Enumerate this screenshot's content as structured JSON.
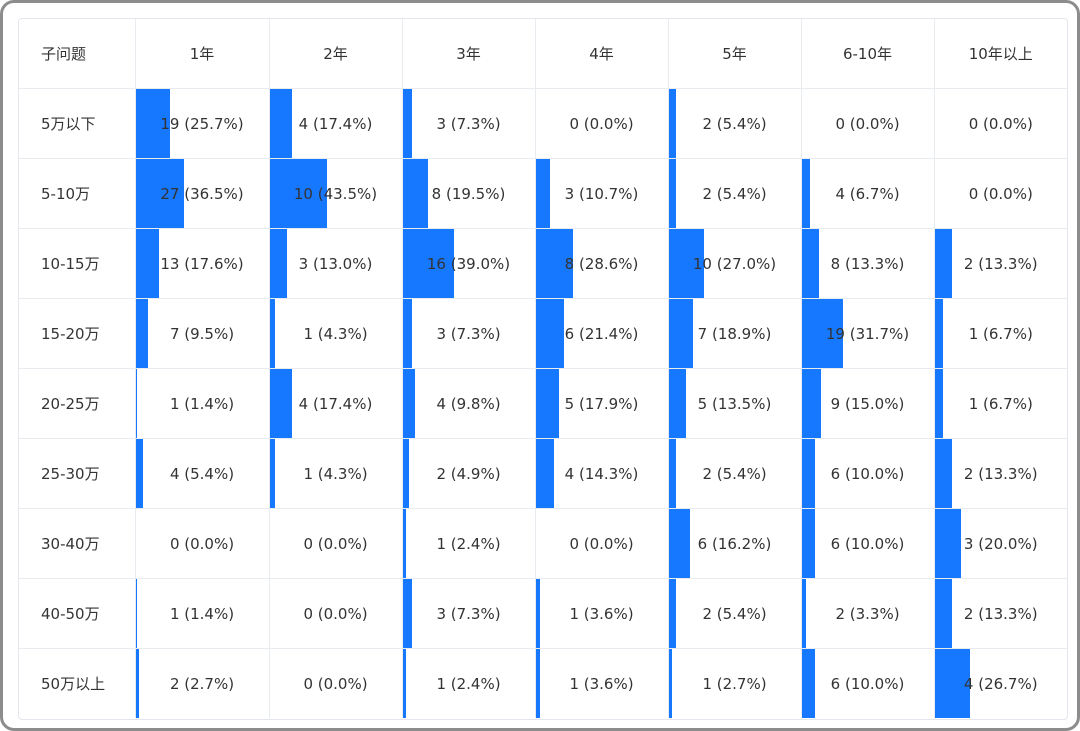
{
  "colors": {
    "bar": "#1677ff",
    "text": "#333333",
    "grid": "#e8ebf0"
  },
  "header": {
    "corner": "子问题",
    "columns": [
      "1年",
      "2年",
      "3年",
      "4年",
      "5年",
      "6-10年",
      "10年以上"
    ]
  },
  "rows": [
    {
      "label": "5万以下",
      "cells": [
        "19 (25.7%)",
        "4 (17.4%)",
        "3 (7.3%)",
        "0 (0.0%)",
        "2 (5.4%)",
        "0 (0.0%)",
        "0 (0.0%)"
      ]
    },
    {
      "label": "5-10万",
      "cells": [
        "27 (36.5%)",
        "10 (43.5%)",
        "8 (19.5%)",
        "3 (10.7%)",
        "2 (5.4%)",
        "4 (6.7%)",
        "0 (0.0%)"
      ]
    },
    {
      "label": "10-15万",
      "cells": [
        "13 (17.6%)",
        "3 (13.0%)",
        "16 (39.0%)",
        "8 (28.6%)",
        "10 (27.0%)",
        "8 (13.3%)",
        "2 (13.3%)"
      ]
    },
    {
      "label": "15-20万",
      "cells": [
        "7 (9.5%)",
        "1 (4.3%)",
        "3 (7.3%)",
        "6 (21.4%)",
        "7 (18.9%)",
        "19 (31.7%)",
        "1 (6.7%)"
      ]
    },
    {
      "label": "20-25万",
      "cells": [
        "1 (1.4%)",
        "4 (17.4%)",
        "4 (9.8%)",
        "5 (17.9%)",
        "5 (13.5%)",
        "9 (15.0%)",
        "1 (6.7%)"
      ]
    },
    {
      "label": "25-30万",
      "cells": [
        "4 (5.4%)",
        "1 (4.3%)",
        "2 (4.9%)",
        "4 (14.3%)",
        "2 (5.4%)",
        "6 (10.0%)",
        "2 (13.3%)"
      ]
    },
    {
      "label": "30-40万",
      "cells": [
        "0 (0.0%)",
        "0 (0.0%)",
        "1 (2.4%)",
        "0 (0.0%)",
        "6 (16.2%)",
        "6 (10.0%)",
        "3 (20.0%)"
      ]
    },
    {
      "label": "40-50万",
      "cells": [
        "1 (1.4%)",
        "0 (0.0%)",
        "3 (7.3%)",
        "1 (3.6%)",
        "2 (5.4%)",
        "2 (3.3%)",
        "2 (13.3%)"
      ]
    },
    {
      "label": "50万以上",
      "cells": [
        "2 (2.7%)",
        "0 (0.0%)",
        "1 (2.4%)",
        "1 (3.6%)",
        "1 (2.7%)",
        "6 (10.0%)",
        "4 (26.7%)"
      ]
    }
  ],
  "chart_data": {
    "type": "table",
    "columns": [
      "1年",
      "2年",
      "3年",
      "4年",
      "5年",
      "6-10年",
      "10年以上"
    ],
    "categories": [
      "5万以下",
      "5-10万",
      "10-15万",
      "15-20万",
      "20-25万",
      "25-30万",
      "30-40万",
      "40-50万",
      "50万以上"
    ],
    "series": [
      {
        "name": "1年",
        "counts": [
          19,
          27,
          13,
          7,
          1,
          4,
          0,
          1,
          2
        ],
        "percents": [
          25.7,
          36.5,
          17.6,
          9.5,
          1.4,
          5.4,
          0.0,
          1.4,
          2.7
        ]
      },
      {
        "name": "2年",
        "counts": [
          4,
          10,
          3,
          1,
          4,
          1,
          0,
          0,
          0
        ],
        "percents": [
          17.4,
          43.5,
          13.0,
          4.3,
          17.4,
          4.3,
          0.0,
          0.0,
          0.0
        ]
      },
      {
        "name": "3年",
        "counts": [
          3,
          8,
          16,
          3,
          4,
          2,
          1,
          3,
          1
        ],
        "percents": [
          7.3,
          19.5,
          39.0,
          7.3,
          9.8,
          4.9,
          2.4,
          7.3,
          2.4
        ]
      },
      {
        "name": "4年",
        "counts": [
          0,
          3,
          8,
          6,
          5,
          4,
          0,
          1,
          1
        ],
        "percents": [
          0.0,
          10.7,
          28.6,
          21.4,
          17.9,
          14.3,
          0.0,
          3.6,
          3.6
        ]
      },
      {
        "name": "5年",
        "counts": [
          2,
          2,
          10,
          7,
          5,
          2,
          6,
          2,
          1
        ],
        "percents": [
          5.4,
          5.4,
          27.0,
          18.9,
          13.5,
          5.4,
          16.2,
          5.4,
          2.7
        ]
      },
      {
        "name": "6-10年",
        "counts": [
          0,
          4,
          8,
          19,
          9,
          6,
          6,
          2,
          6
        ],
        "percents": [
          0.0,
          6.7,
          13.3,
          31.7,
          15.0,
          10.0,
          10.0,
          3.3,
          10.0
        ]
      },
      {
        "name": "10年以上",
        "counts": [
          0,
          0,
          2,
          1,
          1,
          2,
          3,
          2,
          4
        ],
        "percents": [
          0.0,
          0.0,
          13.3,
          6.7,
          6.7,
          13.3,
          20.0,
          13.3,
          26.7
        ]
      }
    ]
  }
}
